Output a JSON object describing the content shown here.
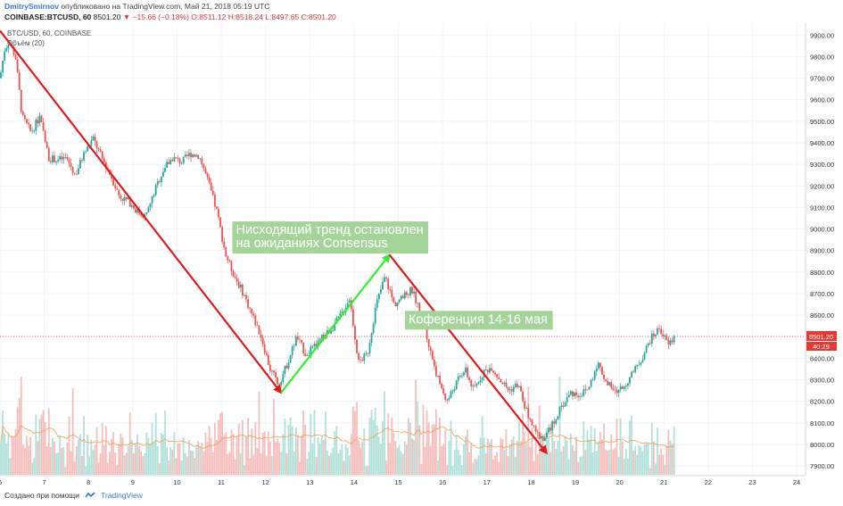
{
  "header": {
    "author": "DmitrySmirnov",
    "published_text": "опубликовано на TradingView.com, Май 21, 2018 05:19 UTC",
    "symbol": "COINBASE:BTCUSD, 60",
    "last": "8501.20",
    "change": "−15.66 (−0.18%)",
    "o": "O:8511.12",
    "h": "H:8518.24",
    "l": "L:8497.65",
    "c": "C:8501.20"
  },
  "legend": {
    "symbol_line": "BTC/USD, 60, COINBASE",
    "volume_line": "Объём (20)"
  },
  "footer": {
    "created_with": "Создано при помощи",
    "brand": "TradingView"
  },
  "colors": {
    "up": "#26a69a",
    "down": "#ef5350",
    "arrow_down": "#e31a1c",
    "arrow_up": "#33ee33",
    "annotation_bg": "#a5d49b",
    "price_line": "#e05050",
    "volume_ma": "#f0a050"
  },
  "chart_data": {
    "type": "candlestick",
    "title": "BTC/USD, 60, COINBASE",
    "x_ticks": [
      "6",
      "7",
      "8",
      "9",
      "10",
      "11",
      "12",
      "13",
      "14",
      "15",
      "16",
      "17",
      "18",
      "19",
      "20",
      "21",
      "22",
      "23",
      "24"
    ],
    "xlim": [
      6,
      24.2
    ],
    "y_ticks": [
      7900,
      8000,
      8100,
      8200,
      8300,
      8400,
      8500,
      8600,
      8700,
      8800,
      8900,
      9000,
      9100,
      9200,
      9300,
      9400,
      9500,
      9600,
      9700,
      9800,
      9900
    ],
    "ylim": [
      7855,
      9955
    ],
    "last_price": 8501.2,
    "last_price_label": "8501.20",
    "countdown_label": "40:29",
    "price_path": [
      [
        6.0,
        9700
      ],
      [
        6.1,
        9830
      ],
      [
        6.2,
        9870
      ],
      [
        6.35,
        9800
      ],
      [
        6.5,
        9520
      ],
      [
        6.7,
        9450
      ],
      [
        6.9,
        9520
      ],
      [
        7.1,
        9330
      ],
      [
        7.3,
        9320
      ],
      [
        7.5,
        9330
      ],
      [
        7.7,
        9250
      ],
      [
        7.9,
        9350
      ],
      [
        8.1,
        9420
      ],
      [
        8.3,
        9330
      ],
      [
        8.5,
        9250
      ],
      [
        8.7,
        9150
      ],
      [
        8.9,
        9130
      ],
      [
        9.1,
        9080
      ],
      [
        9.3,
        9060
      ],
      [
        9.5,
        9180
      ],
      [
        9.7,
        9280
      ],
      [
        9.9,
        9330
      ],
      [
        10.1,
        9310
      ],
      [
        10.3,
        9350
      ],
      [
        10.5,
        9340
      ],
      [
        10.7,
        9220
      ],
      [
        10.9,
        9080
      ],
      [
        11.1,
        8880
      ],
      [
        11.3,
        8780
      ],
      [
        11.5,
        8700
      ],
      [
        11.7,
        8600
      ],
      [
        11.9,
        8500
      ],
      [
        12.1,
        8350
      ],
      [
        12.3,
        8280
      ],
      [
        12.5,
        8380
      ],
      [
        12.7,
        8500
      ],
      [
        12.9,
        8420
      ],
      [
        13.1,
        8450
      ],
      [
        13.3,
        8500
      ],
      [
        13.5,
        8540
      ],
      [
        13.7,
        8600
      ],
      [
        13.9,
        8680
      ],
      [
        14.1,
        8380
      ],
      [
        14.3,
        8420
      ],
      [
        14.5,
        8650
      ],
      [
        14.7,
        8780
      ],
      [
        14.9,
        8650
      ],
      [
        15.1,
        8680
      ],
      [
        15.3,
        8720
      ],
      [
        15.5,
        8620
      ],
      [
        15.7,
        8450
      ],
      [
        15.9,
        8300
      ],
      [
        16.1,
        8200
      ],
      [
        16.3,
        8280
      ],
      [
        16.5,
        8350
      ],
      [
        16.7,
        8250
      ],
      [
        16.9,
        8330
      ],
      [
        17.1,
        8360
      ],
      [
        17.3,
        8300
      ],
      [
        17.5,
        8250
      ],
      [
        17.7,
        8280
      ],
      [
        17.9,
        8150
      ],
      [
        18.1,
        8050
      ],
      [
        18.3,
        8030
      ],
      [
        18.5,
        8100
      ],
      [
        18.7,
        8180
      ],
      [
        18.9,
        8240
      ],
      [
        19.1,
        8230
      ],
      [
        19.3,
        8260
      ],
      [
        19.5,
        8380
      ],
      [
        19.7,
        8290
      ],
      [
        19.9,
        8240
      ],
      [
        20.1,
        8270
      ],
      [
        20.3,
        8330
      ],
      [
        20.5,
        8400
      ],
      [
        20.7,
        8490
      ],
      [
        20.9,
        8540
      ],
      [
        21.1,
        8460
      ],
      [
        21.25,
        8501
      ]
    ],
    "annotations": [
      {
        "text": "Нисходящий тренд остановлен\nна ожиданиях Consensus",
        "x": 11.25,
        "y": 9035
      },
      {
        "text": "Коференция 14-16 мая",
        "x": 15.15,
        "y": 8620
      }
    ],
    "trend_arrows": [
      {
        "direction": "down",
        "from": [
          6.0,
          9920
        ],
        "to": [
          12.35,
          8240
        ]
      },
      {
        "direction": "up",
        "from": [
          12.35,
          8240
        ],
        "to": [
          14.8,
          8880
        ]
      },
      {
        "direction": "down",
        "from": [
          14.8,
          8880
        ],
        "to": [
          18.35,
          7960
        ]
      }
    ],
    "volume_panel": {
      "series_name": "Объём (20)",
      "visible": true
    }
  }
}
